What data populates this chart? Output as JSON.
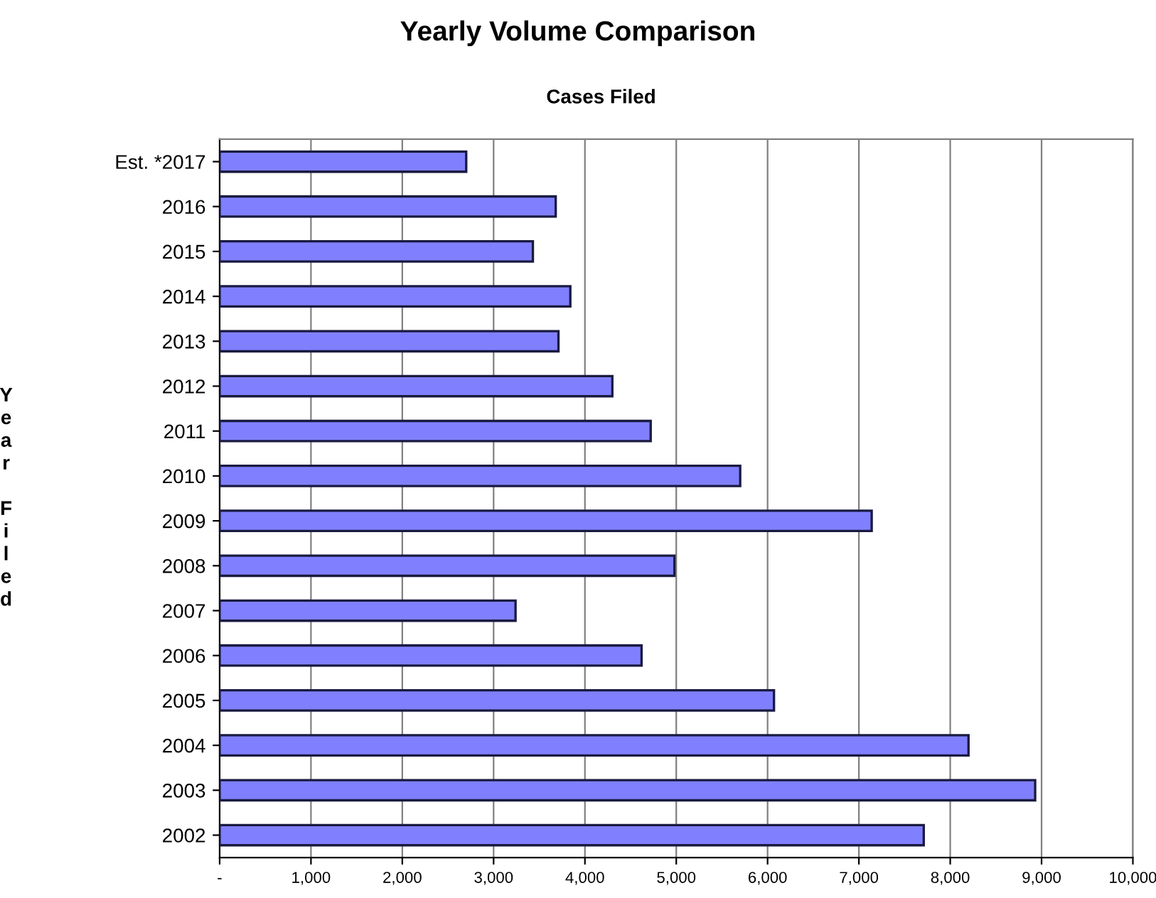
{
  "chart_data": {
    "type": "bar",
    "orientation": "horizontal",
    "title": "Yearly Volume Comparison",
    "subtitle": "Cases Filed",
    "ylabel": "Year Filed",
    "categories": [
      "Est. *2017",
      "2016",
      "2015",
      "2014",
      "2013",
      "2012",
      "2011",
      "2010",
      "2009",
      "2008",
      "2007",
      "2006",
      "2005",
      "2004",
      "2003",
      "2002"
    ],
    "values": [
      2700,
      3680,
      3430,
      3840,
      3710,
      4300,
      4720,
      5700,
      7140,
      4980,
      3240,
      4620,
      6070,
      8200,
      8930,
      7710
    ],
    "color": "#8080ff",
    "xlim": [
      0,
      10000
    ],
    "xticks": [
      {
        "value": 0,
        "label": "-"
      },
      {
        "value": 1000,
        "label": "1,000"
      },
      {
        "value": 2000,
        "label": "2,000"
      },
      {
        "value": 3000,
        "label": "3,000"
      },
      {
        "value": 4000,
        "label": "4,000"
      },
      {
        "value": 5000,
        "label": "5,000"
      },
      {
        "value": 6000,
        "label": "6,000"
      },
      {
        "value": 7000,
        "label": "7,000"
      },
      {
        "value": 8000,
        "label": "8,000"
      },
      {
        "value": 9000,
        "label": "9,000"
      },
      {
        "value": 10000,
        "label": "10,000"
      }
    ],
    "grid": "x",
    "legend": false
  }
}
